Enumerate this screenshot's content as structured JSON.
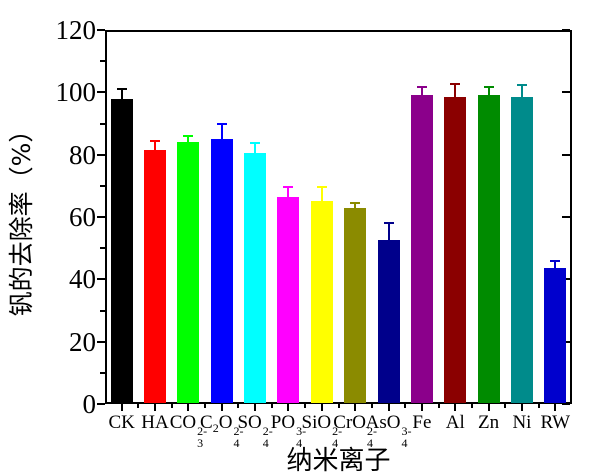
{
  "figure": {
    "background": "#FFFFFF",
    "axis_color": "#000000"
  },
  "chart_data": {
    "type": "bar",
    "title": "",
    "xlabel": "纳米离子",
    "ylabel": "钒的去除率（%）",
    "ylim": [
      0,
      120
    ],
    "y_major_ticks": [
      0,
      20,
      40,
      60,
      80,
      100,
      120
    ],
    "y_minor_ticks": [
      10,
      30,
      50,
      70,
      90,
      110
    ],
    "grid": false,
    "legend": false,
    "error_bars": "upper, same color as bar, with cap",
    "categories": [
      "CK",
      "HA",
      "CO₃²⁻",
      "C₂O₄²⁻",
      "SO₄²⁻",
      "PO₄³⁻",
      "SiO₄²⁻",
      "CrO₄²⁻",
      "AsO₄³⁻",
      "Fe",
      "Al",
      "Zn",
      "Ni",
      "RW"
    ],
    "categories_rich": [
      [
        {
          "t": "CK"
        }
      ],
      [
        {
          "t": "HA"
        }
      ],
      [
        {
          "t": "CO"
        },
        {
          "sub": "3",
          "sup": "2-"
        }
      ],
      [
        {
          "t": "C"
        },
        {
          "sub": "2"
        },
        {
          "t": "O"
        },
        {
          "sub": "4",
          "sup": "2-"
        }
      ],
      [
        {
          "t": "SO"
        },
        {
          "sub": "4",
          "sup": "2-"
        }
      ],
      [
        {
          "t": "PO"
        },
        {
          "sub": "4",
          "sup": "3-"
        }
      ],
      [
        {
          "t": "SiO"
        },
        {
          "sub": "4",
          "sup": "2-"
        }
      ],
      [
        {
          "t": "CrO"
        },
        {
          "sub": "4",
          "sup": "2-"
        }
      ],
      [
        {
          "t": "AsO"
        },
        {
          "sub": "4",
          "sup": "3-"
        }
      ],
      [
        {
          "t": "Fe"
        }
      ],
      [
        {
          "t": "Al"
        }
      ],
      [
        {
          "t": "Zn"
        }
      ],
      [
        {
          "t": "Ni"
        }
      ],
      [
        {
          "t": "RW"
        }
      ]
    ],
    "values": [
      98,
      81.5,
      84,
      85,
      80.5,
      66.5,
      65,
      63,
      52.5,
      99,
      98.5,
      99,
      98.5,
      43.5
    ],
    "errors_plus": [
      3,
      2.8,
      2,
      5,
      3.3,
      3,
      4.7,
      1.6,
      5.5,
      2.6,
      4.2,
      2.6,
      3.9,
      2.5
    ],
    "bar_colors": [
      "#000000",
      "#FF0000",
      "#00FF00",
      "#0000FF",
      "#00FFFF",
      "#FF00FF",
      "#FFFF00",
      "#8B8B00",
      "#00008B",
      "#8B008B",
      "#8B0000",
      "#008B00",
      "#008B8B",
      "#0000CD"
    ]
  }
}
